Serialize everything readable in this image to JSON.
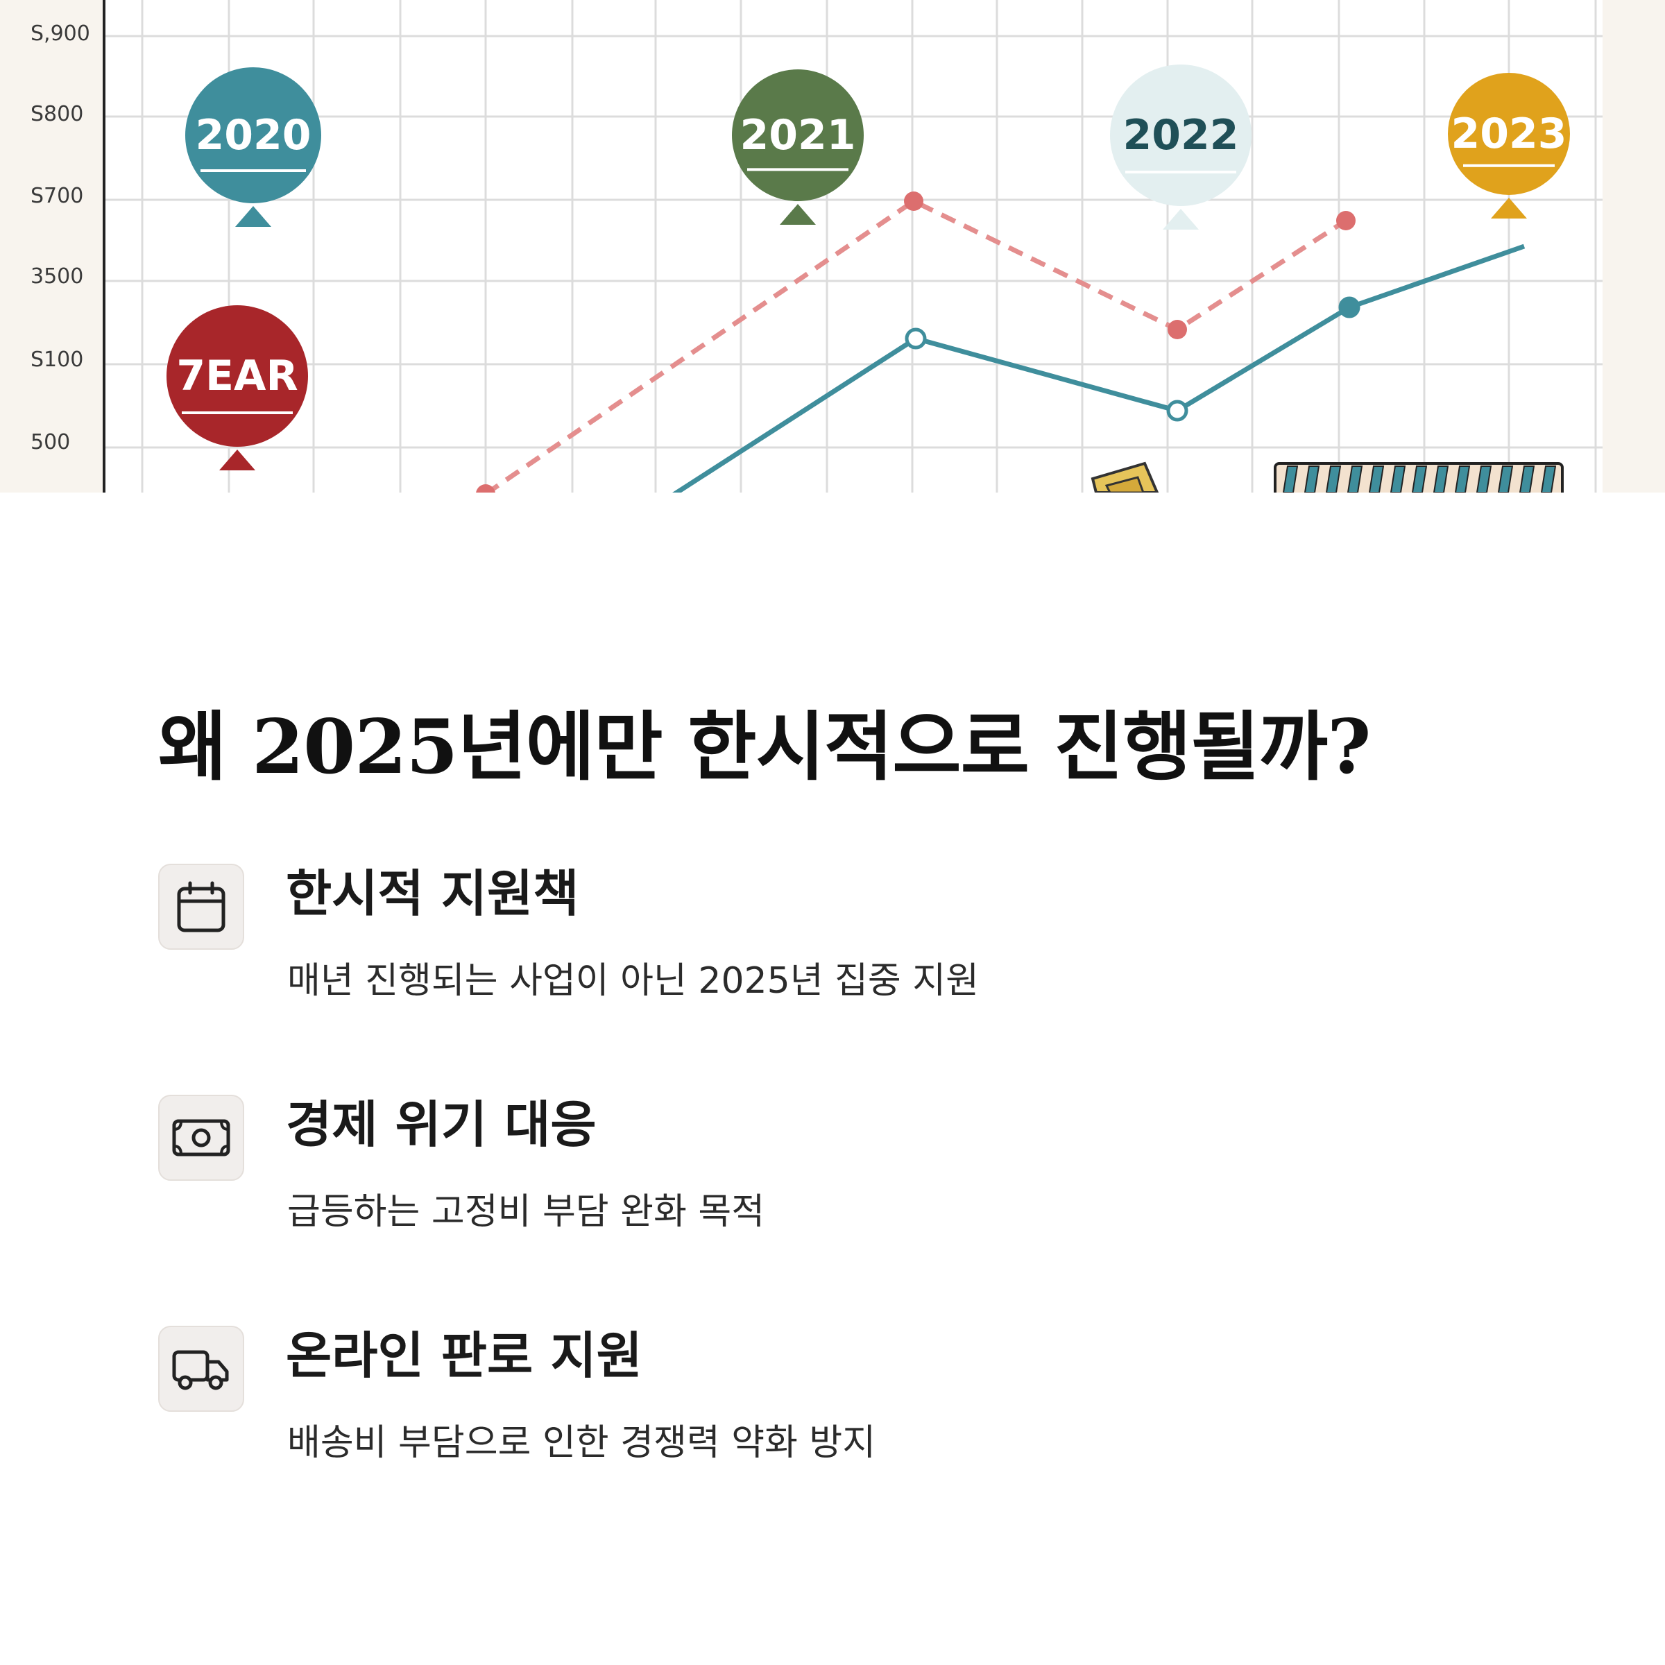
{
  "chart_data": {
    "type": "line",
    "y_tick_labels": [
      "S,900",
      "S800",
      "S700",
      "3500",
      "S100",
      "500"
    ],
    "badges": [
      {
        "label": "2020",
        "color": "#3f8e9c",
        "text_color": "#ffffff"
      },
      {
        "label": "2021",
        "color": "#5a7a4a",
        "text_color": "#ffffff"
      },
      {
        "label": "2022",
        "color": "#e3eff0",
        "text_color": "#1f4f57"
      },
      {
        "label": "2023",
        "color": "#e0a21c",
        "text_color": "#ffffff"
      },
      {
        "label": "7EAR",
        "color": "#a8262a",
        "text_color": "#ffffff"
      }
    ],
    "series": [
      {
        "line_style": "dashed",
        "color": "#e48e8e"
      },
      {
        "line_style": "solid",
        "color": "#3f8e9c"
      }
    ]
  },
  "heading": "왜 2025년에만 한시적으로 진행될까?",
  "items": [
    {
      "icon": "calendar-icon",
      "title": "한시적 지원책",
      "desc": "매년 진행되는 사업이 아닌 2025년 집중 지원"
    },
    {
      "icon": "banknote-icon",
      "title": "경제 위기 대응",
      "desc": "급등하는 고정비 부담 완화 목적"
    },
    {
      "icon": "truck-icon",
      "title": "온라인 판로 지원",
      "desc": "배송비 부담으로 인한 경쟁력 약화 방지"
    }
  ]
}
